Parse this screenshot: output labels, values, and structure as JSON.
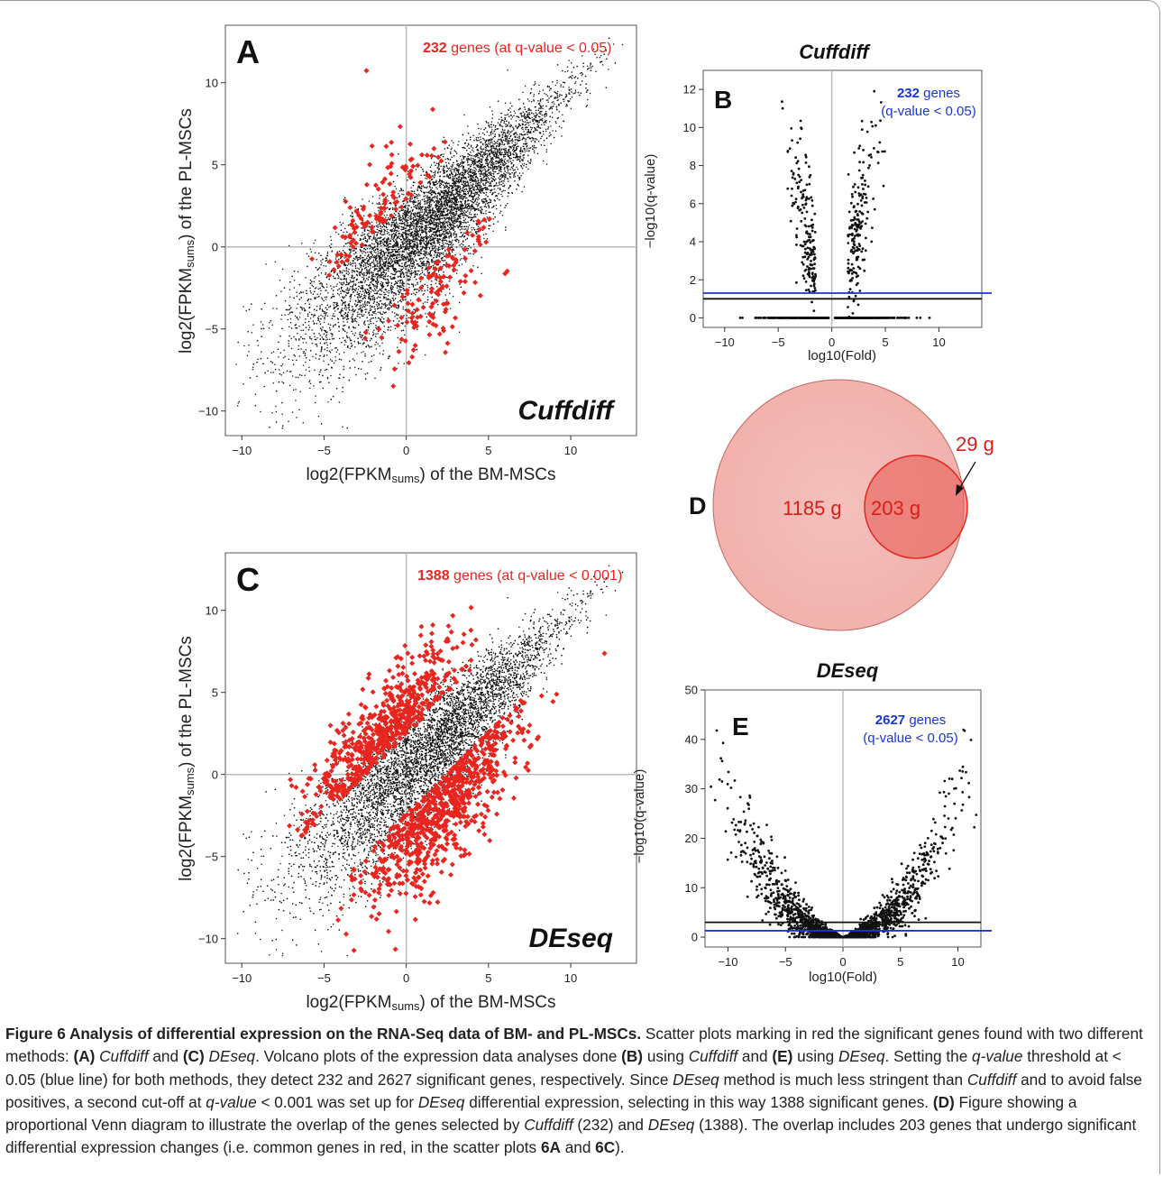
{
  "panel_a": {
    "letter": "A",
    "annotation_count": "232",
    "annotation_rest": " genes (at q-value < 0.05)",
    "method_label": "Cuffdiff",
    "xlabel_pre": "log2(FPKM",
    "xlabel_sub": "sums",
    "xlabel_post": ") of the BM-MSCs",
    "ylabel_pre": "log2(FPKM",
    "ylabel_sub": "sums",
    "ylabel_post": ") of the PL-MSCs"
  },
  "panel_c": {
    "letter": "C",
    "annotation_count": "1388",
    "annotation_rest": " genes (at q-value < 0.001)",
    "method_label": "DEseq",
    "xlabel_pre": "log2(FPKM",
    "xlabel_sub": "sums",
    "xlabel_post": ") of the BM-MSCs",
    "ylabel_pre": "log2(FPKM",
    "ylabel_sub": "sums",
    "ylabel_post": ") of the PL-MSCs"
  },
  "panel_b": {
    "title": "Cuffdiff",
    "letter": "B",
    "annotation_count": "232",
    "annotation_rest": " genes",
    "annotation_line2": "(q-value < 0.05)",
    "xlabel": "log10(Fold)",
    "ylabel": "−log10(q-value)"
  },
  "panel_e": {
    "title": "DEseq",
    "letter": "E",
    "annotation_count": "2627",
    "annotation_rest": " genes",
    "annotation_line2": "(q-value < 0.05)",
    "xlabel": "log10(Fold)",
    "ylabel": "−log10(q-value)"
  },
  "panel_d": {
    "letter": "D",
    "big_label": "1185 g",
    "overlap_label": "203 g",
    "small_label": "29 g"
  },
  "caption": {
    "title": "Figure 6 Analysis of differential expression on the RNA-Seq data of BM- and PL-MSCs.",
    "s1": " Scatter plots marking in red the significant genes found with two different methods: ",
    "a": "(A)",
    "cuffdiff": "Cuffdiff",
    "and1": " and ",
    "c": "(C)",
    "deseq": "DEseq",
    "s2": ". Volcano plots of the expression data analyses done ",
    "b": "(B)",
    "s3": " using ",
    "and2": " and ",
    "e": "(E)",
    "s4": " using ",
    "s5": ". Setting the ",
    "qvalue": "q-value",
    "s6": " threshold at < 0.05 (blue line) for both methods, they detect 232 and 2627 significant genes, respectively. Since ",
    "s7": " method is much less stringent than ",
    "s8": " and to avoid false positives, a second cut-off at ",
    "s9": " < 0.001 was set up for ",
    "s10": " differential expression, selecting in this way 1388 significant genes. ",
    "d": "(D)",
    "s11": " Figure showing a proportional Venn diagram to illustrate the overlap of the genes selected by ",
    "s12": " (232) and ",
    "s13": " (1388). The overlap includes 203 genes that undergo significant differential expression changes (i.e. common genes in red, in the scatter plots ",
    "r6a": "6A",
    "and3": " and ",
    "r6c": "6C",
    "s14": ")."
  },
  "colors": {
    "significant": "#e8261f",
    "background_points": "#111111",
    "threshold_blue": "#1a35d6",
    "annotation_blue": "#1a35d6",
    "venn_big": "#f2b2ae",
    "venn_small": "#e87f78"
  },
  "chart_data": [
    {
      "panel": "A",
      "type": "scatter",
      "xlabel": "log2(FPKMsums) of the BM-MSCs",
      "ylabel": "log2(FPKMsums) of the PL-MSCs",
      "xlim": [
        -11,
        14
      ],
      "ylim": [
        -11.5,
        13.5
      ],
      "xticks": [
        -10,
        -5,
        0,
        5,
        10
      ],
      "yticks": [
        -10,
        -5,
        0,
        5,
        10
      ],
      "series": [
        {
          "name": "significant",
          "color": "#e8261f",
          "count": 232
        }
      ],
      "annotation": "232 genes (at q-value < 0.05)"
    },
    {
      "panel": "C",
      "type": "scatter",
      "xlabel": "log2(FPKMsums) of the BM-MSCs",
      "ylabel": "log2(FPKMsums) of the PL-MSCs",
      "xlim": [
        -11,
        14
      ],
      "ylim": [
        -11.5,
        13.5
      ],
      "xticks": [
        -10,
        -5,
        0,
        5,
        10
      ],
      "yticks": [
        -10,
        -5,
        0,
        5,
        10
      ],
      "series": [
        {
          "name": "significant",
          "color": "#e8261f",
          "count": 1388
        }
      ],
      "annotation": "1388 genes (at q-value < 0.001)"
    },
    {
      "panel": "B",
      "type": "scatter",
      "title": "Cuffdiff",
      "xlabel": "log10(Fold)",
      "ylabel": "−log10(q-value)",
      "xlim": [
        -12,
        14
      ],
      "ylim": [
        -0.5,
        13
      ],
      "xticks": [
        -10,
        -5,
        0,
        5,
        10
      ],
      "yticks": [
        0,
        2,
        4,
        6,
        8,
        10,
        12
      ],
      "threshold_lines": [
        {
          "color": "blue",
          "y": 1.3
        },
        {
          "color": "black",
          "y": 1.0
        }
      ],
      "annotation": "232 genes (q-value < 0.05)"
    },
    {
      "panel": "E",
      "type": "scatter",
      "title": "DEseq",
      "xlabel": "log10(Fold)",
      "ylabel": "−log10(q-value)",
      "xlim": [
        -12,
        12
      ],
      "ylim": [
        -2,
        50
      ],
      "xticks": [
        -10,
        -5,
        0,
        5,
        10
      ],
      "yticks": [
        0,
        10,
        20,
        30,
        40,
        50
      ],
      "threshold_lines": [
        {
          "color": "black",
          "y": 3
        },
        {
          "color": "blue",
          "y": 1.3
        }
      ],
      "annotation": "2627 genes (q-value < 0.05)"
    },
    {
      "panel": "D",
      "type": "venn",
      "sets": [
        {
          "name": "DEseq",
          "size": 1388
        },
        {
          "name": "Cuffdiff",
          "size": 232
        }
      ],
      "regions": {
        "only_big": 1185,
        "overlap": 203,
        "only_small": 29
      }
    }
  ]
}
